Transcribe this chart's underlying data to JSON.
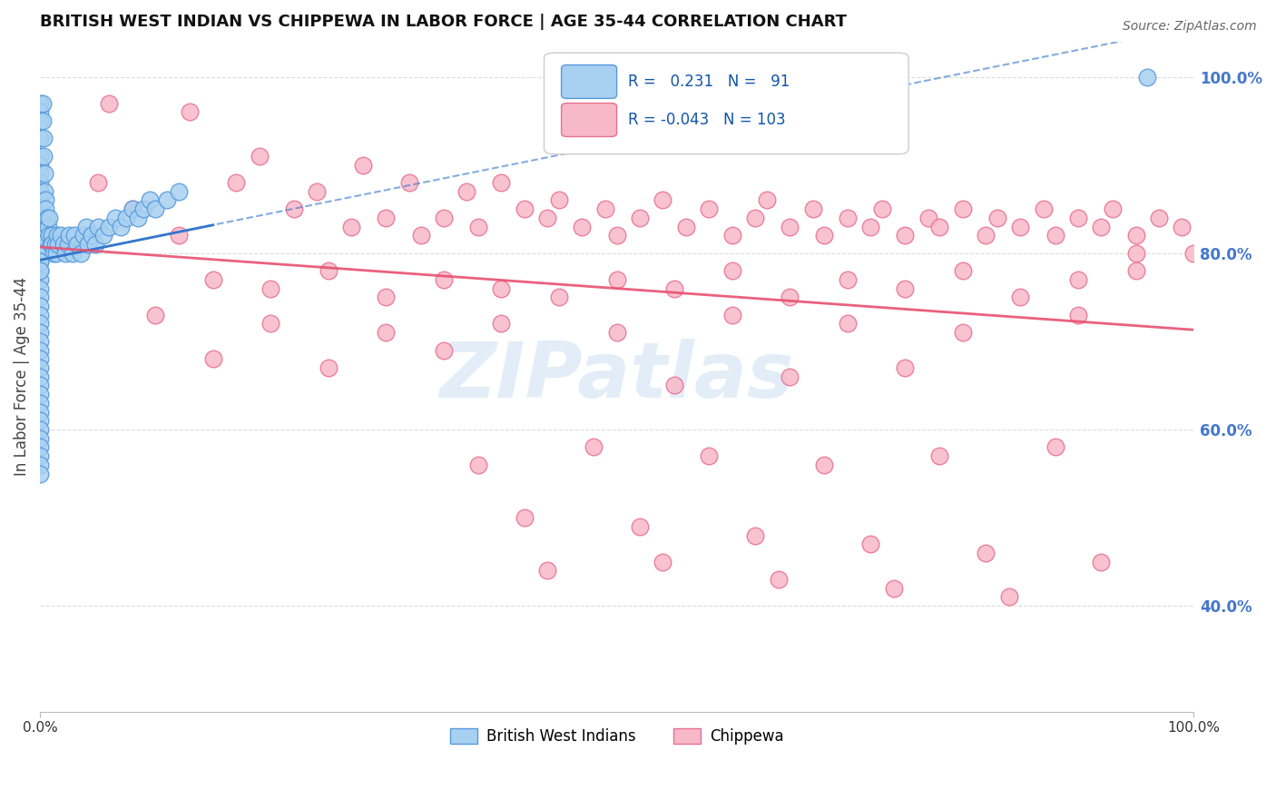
{
  "title": "BRITISH WEST INDIAN VS CHIPPEWA IN LABOR FORCE | AGE 35-44 CORRELATION CHART",
  "source": "Source: ZipAtlas.com",
  "ylabel": "In Labor Force | Age 35-44",
  "legend_label1": "British West Indians",
  "legend_label2": "Chippewa",
  "r1": "0.231",
  "n1": "91",
  "r2": "-0.043",
  "n2": "103",
  "blue_marker_face": "#a8d0f0",
  "blue_marker_edge": "#5599dd",
  "pink_marker_face": "#f7b8c8",
  "pink_marker_edge": "#e87090",
  "blue_line_color": "#3377cc",
  "pink_line_color": "#e85070",
  "right_tick_color": "#4477cc",
  "grid_color": "#dddddd",
  "watermark_color": "#c8ddf0",
  "xlim": [
    0.0,
    1.0
  ],
  "ylim": [
    0.28,
    1.04
  ],
  "yticks": [
    0.4,
    0.6,
    0.8,
    1.0
  ],
  "ytick_labels": [
    "40.0%",
    "60.0%",
    "80.0%",
    "100.0%"
  ],
  "blue_x": [
    0.0,
    0.0,
    0.0,
    0.0,
    0.0,
    0.0,
    0.0,
    0.0,
    0.0,
    0.0,
    0.0,
    0.0,
    0.0,
    0.0,
    0.0,
    0.0,
    0.0,
    0.0,
    0.0,
    0.0,
    0.002,
    0.002,
    0.003,
    0.003,
    0.004,
    0.004,
    0.005,
    0.005,
    0.006,
    0.007,
    0.008,
    0.008,
    0.009,
    0.01,
    0.01,
    0.012,
    0.013,
    0.014,
    0.015,
    0.016,
    0.018,
    0.02,
    0.022,
    0.024,
    0.025,
    0.028,
    0.03,
    0.032,
    0.035,
    0.038,
    0.04,
    0.042,
    0.045,
    0.048,
    0.05,
    0.055,
    0.06,
    0.065,
    0.07,
    0.075,
    0.08,
    0.085,
    0.09,
    0.095,
    0.1,
    0.11,
    0.12,
    0.0,
    0.0,
    0.0,
    0.0,
    0.0,
    0.0,
    0.0,
    0.0,
    0.0,
    0.0,
    0.0,
    0.0,
    0.0,
    0.0,
    0.0,
    0.0,
    0.0,
    0.0,
    0.0,
    0.0,
    0.0,
    0.96,
    0.0,
    0.0
  ],
  "blue_y": [
    0.97,
    0.96,
    0.95,
    0.93,
    0.91,
    0.9,
    0.89,
    0.88,
    0.87,
    0.86,
    0.85,
    0.84,
    0.83,
    0.82,
    0.81,
    0.8,
    0.79,
    0.78,
    0.77,
    0.76,
    0.97,
    0.95,
    0.93,
    0.91,
    0.89,
    0.87,
    0.86,
    0.85,
    0.84,
    0.83,
    0.84,
    0.82,
    0.81,
    0.82,
    0.81,
    0.8,
    0.81,
    0.8,
    0.82,
    0.81,
    0.82,
    0.81,
    0.8,
    0.81,
    0.82,
    0.8,
    0.82,
    0.81,
    0.8,
    0.82,
    0.83,
    0.81,
    0.82,
    0.81,
    0.83,
    0.82,
    0.83,
    0.84,
    0.83,
    0.84,
    0.85,
    0.84,
    0.85,
    0.86,
    0.85,
    0.86,
    0.87,
    0.75,
    0.74,
    0.73,
    0.72,
    0.71,
    0.7,
    0.69,
    0.68,
    0.67,
    0.66,
    0.65,
    0.64,
    0.63,
    0.62,
    0.61,
    0.6,
    0.59,
    0.58,
    0.57,
    0.56,
    0.55,
    1.0,
    0.79,
    0.78
  ],
  "pink_x": [
    0.06,
    0.13,
    0.17,
    0.19,
    0.22,
    0.24,
    0.27,
    0.28,
    0.3,
    0.32,
    0.33,
    0.35,
    0.37,
    0.38,
    0.4,
    0.42,
    0.44,
    0.45,
    0.47,
    0.49,
    0.5,
    0.52,
    0.54,
    0.56,
    0.58,
    0.6,
    0.62,
    0.63,
    0.65,
    0.67,
    0.68,
    0.7,
    0.72,
    0.73,
    0.75,
    0.77,
    0.78,
    0.8,
    0.82,
    0.83,
    0.85,
    0.87,
    0.88,
    0.9,
    0.92,
    0.93,
    0.95,
    0.97,
    0.99,
    1.0,
    0.15,
    0.2,
    0.25,
    0.3,
    0.35,
    0.4,
    0.45,
    0.5,
    0.55,
    0.6,
    0.65,
    0.7,
    0.75,
    0.8,
    0.85,
    0.9,
    0.95,
    0.1,
    0.2,
    0.3,
    0.4,
    0.5,
    0.6,
    0.7,
    0.8,
    0.9,
    0.15,
    0.25,
    0.35,
    0.55,
    0.65,
    0.75,
    0.38,
    0.48,
    0.58,
    0.68,
    0.78,
    0.88,
    0.42,
    0.52,
    0.62,
    0.72,
    0.82,
    0.92,
    0.44,
    0.54,
    0.64,
    0.74,
    0.84,
    0.05,
    0.08,
    0.12,
    0.95
  ],
  "pink_y": [
    0.97,
    0.96,
    0.88,
    0.91,
    0.85,
    0.87,
    0.83,
    0.9,
    0.84,
    0.88,
    0.82,
    0.84,
    0.87,
    0.83,
    0.88,
    0.85,
    0.84,
    0.86,
    0.83,
    0.85,
    0.82,
    0.84,
    0.86,
    0.83,
    0.85,
    0.82,
    0.84,
    0.86,
    0.83,
    0.85,
    0.82,
    0.84,
    0.83,
    0.85,
    0.82,
    0.84,
    0.83,
    0.85,
    0.82,
    0.84,
    0.83,
    0.85,
    0.82,
    0.84,
    0.83,
    0.85,
    0.82,
    0.84,
    0.83,
    0.8,
    0.77,
    0.76,
    0.78,
    0.75,
    0.77,
    0.76,
    0.75,
    0.77,
    0.76,
    0.78,
    0.75,
    0.77,
    0.76,
    0.78,
    0.75,
    0.77,
    0.78,
    0.73,
    0.72,
    0.71,
    0.72,
    0.71,
    0.73,
    0.72,
    0.71,
    0.73,
    0.68,
    0.67,
    0.69,
    0.65,
    0.66,
    0.67,
    0.56,
    0.58,
    0.57,
    0.56,
    0.57,
    0.58,
    0.5,
    0.49,
    0.48,
    0.47,
    0.46,
    0.45,
    0.44,
    0.45,
    0.43,
    0.42,
    0.41,
    0.88,
    0.85,
    0.82,
    0.8
  ]
}
